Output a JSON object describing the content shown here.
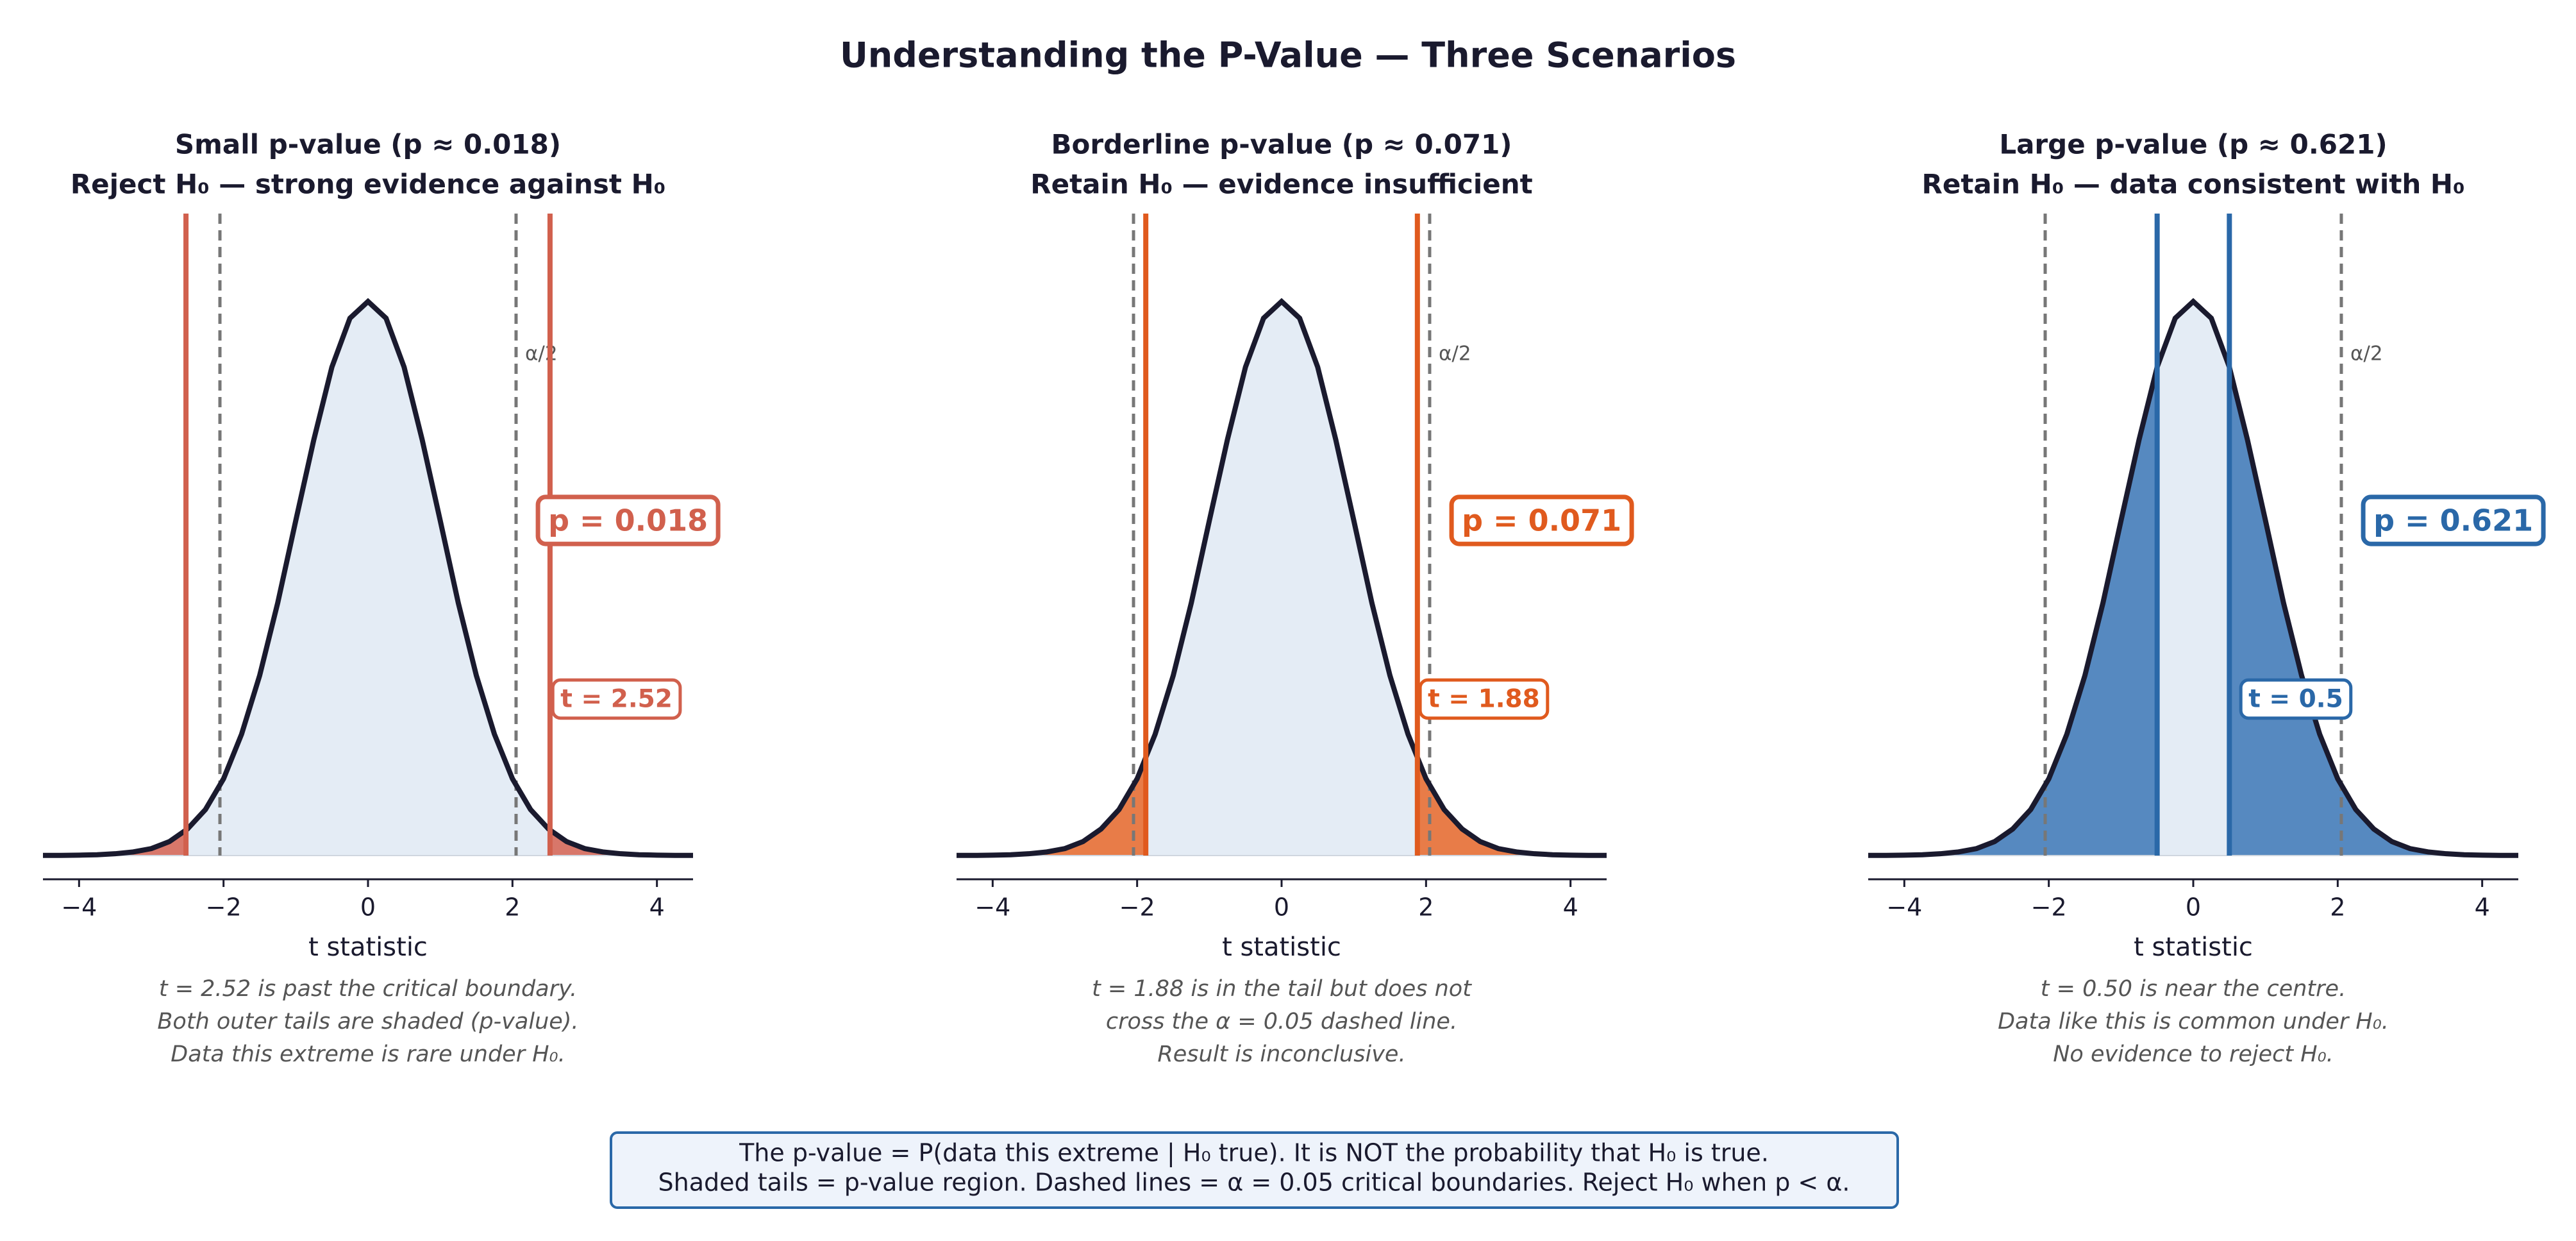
{
  "title": "Understanding the P-Value — Three Scenarios",
  "chart_data": [
    {
      "type": "density",
      "title": "Small p-value  (p ≈ 0.018)",
      "subtitle": "Reject H₀ — strong evidence against H₀",
      "x": [
        -4.5,
        -4.25,
        -4,
        -3.75,
        -3.5,
        -3.25,
        -3,
        -2.75,
        -2.5,
        -2.25,
        -2,
        -1.75,
        -1.5,
        -1.25,
        -1,
        -0.75,
        -0.5,
        -0.25,
        0,
        0.25,
        0.5,
        0.75,
        1,
        1.25,
        1.5,
        1.75,
        2,
        2.25,
        2.5,
        2.75,
        3,
        3.25,
        3.5,
        3.75,
        4,
        4.25,
        4.5
      ],
      "values": [
        0.0001,
        0.0001,
        0.0003,
        0.0006,
        0.0013,
        0.0026,
        0.005,
        0.01,
        0.019,
        0.033,
        0.055,
        0.087,
        0.129,
        0.181,
        0.24,
        0.298,
        0.35,
        0.385,
        0.397,
        0.385,
        0.35,
        0.298,
        0.24,
        0.181,
        0.129,
        0.087,
        0.055,
        0.033,
        0.019,
        0.01,
        0.005,
        0.0026,
        0.0013,
        0.0006,
        0.0003,
        0.0001,
        0.0001
      ],
      "color": "#d1604d",
      "tail_color": "#d8776a",
      "t_stat": 2.52,
      "t_label": "t = 2.52",
      "p_value": 0.018,
      "p_label": "p = 0.018",
      "critical": 2.05,
      "critical_label": "α/2",
      "xlabel": "t statistic",
      "xlim": [
        -4.5,
        4.5
      ],
      "ylim": [
        -0.017,
        0.46
      ],
      "xticks": [
        {
          "value": -4,
          "label": "−4"
        },
        {
          "value": -2,
          "label": "−2"
        },
        0,
        2,
        4
      ],
      "caption": [
        "t = 2.52 is past the critical boundary.",
        "Both outer tails are shaded (p-value).",
        "Data this extreme is rare under H₀."
      ]
    },
    {
      "type": "density",
      "title": "Borderline p-value  (p ≈ 0.071)",
      "subtitle": "Retain H₀ — evidence insufficient",
      "x": [
        -4.5,
        -4.25,
        -4,
        -3.75,
        -3.5,
        -3.25,
        -3,
        -2.75,
        -2.5,
        -2.25,
        -2,
        -1.75,
        -1.5,
        -1.25,
        -1,
        -0.75,
        -0.5,
        -0.25,
        0,
        0.25,
        0.5,
        0.75,
        1,
        1.25,
        1.5,
        1.75,
        2,
        2.25,
        2.5,
        2.75,
        3,
        3.25,
        3.5,
        3.75,
        4,
        4.25,
        4.5
      ],
      "values": [
        0.0001,
        0.0001,
        0.0003,
        0.0006,
        0.0013,
        0.0026,
        0.005,
        0.01,
        0.019,
        0.033,
        0.055,
        0.087,
        0.129,
        0.181,
        0.24,
        0.298,
        0.35,
        0.385,
        0.397,
        0.385,
        0.35,
        0.298,
        0.24,
        0.181,
        0.129,
        0.087,
        0.055,
        0.033,
        0.019,
        0.01,
        0.005,
        0.0026,
        0.0013,
        0.0006,
        0.0003,
        0.0001,
        0.0001
      ],
      "color": "#e05a1e",
      "tail_color": "#e87c48",
      "t_stat": 1.88,
      "t_label": "t = 1.88",
      "p_value": 0.071,
      "p_label": "p = 0.071",
      "critical": 2.05,
      "critical_label": "α/2",
      "xlabel": "t statistic",
      "xlim": [
        -4.5,
        4.5
      ],
      "ylim": [
        -0.017,
        0.46
      ],
      "xticks": [
        {
          "value": -4,
          "label": "−4"
        },
        {
          "value": -2,
          "label": "−2"
        },
        0,
        2,
        4
      ],
      "caption": [
        "t = 1.88 is in the tail but does not",
        "cross the α = 0.05 dashed line.",
        "Result is inconclusive."
      ]
    },
    {
      "type": "density",
      "title": "Large p-value  (p ≈ 0.621)",
      "subtitle": "Retain H₀ — data consistent with H₀",
      "x": [
        -4.5,
        -4.25,
        -4,
        -3.75,
        -3.5,
        -3.25,
        -3,
        -2.75,
        -2.5,
        -2.25,
        -2,
        -1.75,
        -1.5,
        -1.25,
        -1,
        -0.75,
        -0.5,
        -0.25,
        0,
        0.25,
        0.5,
        0.75,
        1,
        1.25,
        1.5,
        1.75,
        2,
        2.25,
        2.5,
        2.75,
        3,
        3.25,
        3.5,
        3.75,
        4,
        4.25,
        4.5
      ],
      "values": [
        0.0001,
        0.0001,
        0.0003,
        0.0006,
        0.0013,
        0.0026,
        0.005,
        0.01,
        0.019,
        0.033,
        0.055,
        0.087,
        0.129,
        0.181,
        0.24,
        0.298,
        0.35,
        0.385,
        0.397,
        0.385,
        0.35,
        0.298,
        0.24,
        0.181,
        0.129,
        0.087,
        0.055,
        0.033,
        0.019,
        0.01,
        0.005,
        0.0026,
        0.0013,
        0.0006,
        0.0003,
        0.0001,
        0.0001
      ],
      "color": "#2a68a8",
      "tail_color": "#5689c0",
      "t_stat": 0.5,
      "t_label": "t = 0.5",
      "p_value": 0.621,
      "p_label": "p = 0.621",
      "critical": 2.05,
      "critical_label": "α/2",
      "xlabel": "t statistic",
      "xlim": [
        -4.5,
        4.5
      ],
      "ylim": [
        -0.017,
        0.46
      ],
      "xticks": [
        {
          "value": -4,
          "label": "−4"
        },
        {
          "value": -2,
          "label": "−2"
        },
        0,
        2,
        4
      ],
      "caption": [
        "t = 0.50 is near the centre.",
        "Data like this is common under H₀.",
        "No evidence to reject H₀."
      ]
    }
  ],
  "footnote": [
    "The p-value = P(data this extreme | H₀ true).  It is NOT the probability that H₀ is true.",
    "Shaded tails = p-value region.   Dashed lines = α = 0.05 critical boundaries.   Reject H₀ when p < α."
  ]
}
